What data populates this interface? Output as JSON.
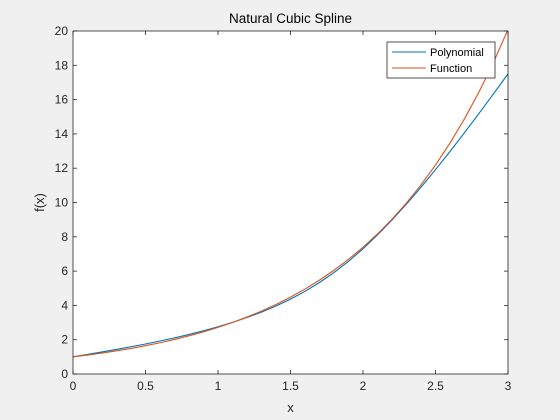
{
  "chart_data": {
    "type": "line",
    "title": "Natural Cubic Spline",
    "xlabel": "x",
    "ylabel": "f(x)",
    "xlim": [
      0,
      3
    ],
    "ylim": [
      0,
      20
    ],
    "xticks": [
      0,
      0.5,
      1,
      1.5,
      2,
      2.5,
      3
    ],
    "xtick_labels": [
      "0",
      "0.5",
      "1",
      "1.5",
      "2",
      "2.5",
      "3"
    ],
    "yticks": [
      0,
      2,
      4,
      6,
      8,
      10,
      12,
      14,
      16,
      18,
      20
    ],
    "ytick_labels": [
      "0",
      "2",
      "4",
      "6",
      "8",
      "10",
      "12",
      "14",
      "16",
      "18",
      "20"
    ],
    "grid": false,
    "legend_position": "top-right",
    "series": [
      {
        "name": "Polynomial",
        "color": "#0072bd",
        "x": [
          0,
          0.1,
          0.2,
          0.3,
          0.4,
          0.5,
          0.6,
          0.7,
          0.8,
          0.9,
          1.0,
          1.1,
          1.2,
          1.3,
          1.4,
          1.5,
          1.6,
          1.7,
          1.8,
          1.9,
          2.0,
          2.1,
          2.2,
          2.3,
          2.4,
          2.5,
          2.6,
          2.7,
          2.8,
          2.9,
          3.0
        ],
        "y": [
          1.0,
          1.142,
          1.286,
          1.434,
          1.588,
          1.75,
          1.923,
          2.108,
          2.307,
          2.523,
          2.757,
          3.012,
          3.294,
          3.61,
          3.965,
          4.367,
          4.822,
          5.336,
          5.916,
          6.568,
          7.299,
          8.11,
          8.982,
          9.91,
          10.889,
          11.912,
          12.974,
          14.07,
          15.193,
          16.338,
          17.5
        ]
      },
      {
        "name": "Function",
        "color": "#d95319",
        "x": [
          0,
          0.1,
          0.2,
          0.3,
          0.4,
          0.5,
          0.6,
          0.7,
          0.8,
          0.9,
          1.0,
          1.1,
          1.2,
          1.3,
          1.4,
          1.5,
          1.6,
          1.7,
          1.8,
          1.9,
          2.0,
          2.1,
          2.2,
          2.3,
          2.4,
          2.5,
          2.6,
          2.7,
          2.8,
          2.9,
          3.0
        ],
        "y": [
          1.0,
          1.105,
          1.221,
          1.35,
          1.492,
          1.649,
          1.822,
          2.014,
          2.226,
          2.46,
          2.718,
          3.004,
          3.32,
          3.669,
          4.055,
          4.482,
          4.953,
          5.474,
          6.05,
          6.686,
          7.389,
          8.166,
          9.025,
          9.974,
          11.023,
          12.182,
          13.464,
          14.88,
          16.445,
          18.174,
          20.086
        ]
      }
    ]
  }
}
